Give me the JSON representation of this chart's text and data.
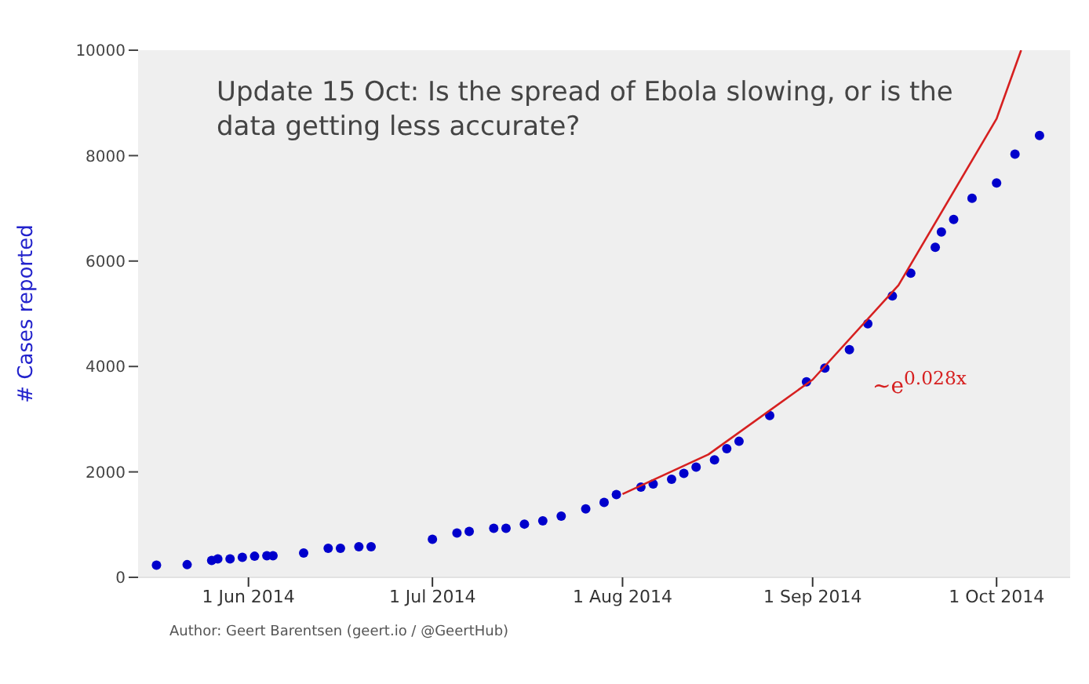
{
  "chart_data": {
    "type": "scatter",
    "title": "Update 15 Oct: Is the spread of Ebola slowing, or is the data getting less accurate?",
    "ylabel": "# Cases reported",
    "x": [
      "2014-05-17",
      "2014-05-22",
      "2014-05-26",
      "2014-05-27",
      "2014-05-29",
      "2014-05-31",
      "2014-06-02",
      "2014-06-04",
      "2014-06-05",
      "2014-06-10",
      "2014-06-14",
      "2014-06-16",
      "2014-06-19",
      "2014-06-21",
      "2014-07-01",
      "2014-07-05",
      "2014-07-07",
      "2014-07-11",
      "2014-07-13",
      "2014-07-16",
      "2014-07-19",
      "2014-07-22",
      "2014-07-26",
      "2014-07-29",
      "2014-07-31",
      "2014-08-04",
      "2014-08-06",
      "2014-08-09",
      "2014-08-11",
      "2014-08-13",
      "2014-08-16",
      "2014-08-18",
      "2014-08-20",
      "2014-08-25",
      "2014-08-31",
      "2014-09-03",
      "2014-09-07",
      "2014-09-10",
      "2014-09-14",
      "2014-09-17",
      "2014-09-21",
      "2014-09-22",
      "2014-09-24",
      "2014-09-27",
      "2014-10-01",
      "2014-10-04",
      "2014-10-08"
    ],
    "series": [
      {
        "color": "#0000cc",
        "marker": "circle",
        "values": [
          230,
          240,
          320,
          350,
          350,
          380,
          400,
          410,
          410,
          460,
          550,
          550,
          580,
          580,
          720,
          840,
          870,
          930,
          930,
          1010,
          1070,
          1160,
          1300,
          1420,
          1570,
          1710,
          1770,
          1860,
          1970,
          2090,
          2230,
          2440,
          2580,
          3070,
          3710,
          3970,
          4320,
          4810,
          5340,
          5770,
          6260,
          6550,
          6790,
          7190,
          7480,
          8030,
          8380
        ]
      },
      {
        "type": "line",
        "color": "#d62020",
        "x": [
          "2014-08-01",
          "2014-08-15",
          "2014-09-01",
          "2014-09-15",
          "2014-10-01",
          "2014-10-05"
        ],
        "values": [
          1580,
          2330,
          3750,
          5540,
          8700,
          10000
        ]
      }
    ],
    "xlim": [
      "2014-05-14",
      "2014-10-13"
    ],
    "xticks": [
      {
        "value": "2014-06-01",
        "label": "1 Jun 2014"
      },
      {
        "value": "2014-07-01",
        "label": "1 Jul 2014"
      },
      {
        "value": "2014-08-01",
        "label": "1 Aug 2014"
      },
      {
        "value": "2014-09-01",
        "label": "1 Sep 2014"
      },
      {
        "value": "2014-10-01",
        "label": "1 Oct 2014"
      }
    ],
    "ylim": [
      0,
      10000
    ],
    "yticks": [
      0,
      2000,
      4000,
      6000,
      8000,
      10000
    ],
    "grid": false,
    "line_style": "solid",
    "annotations": [
      "∼e$^{0.028x}$",
      "Author: Geert Barentsen (geert.io / @GeertHub)"
    ]
  }
}
